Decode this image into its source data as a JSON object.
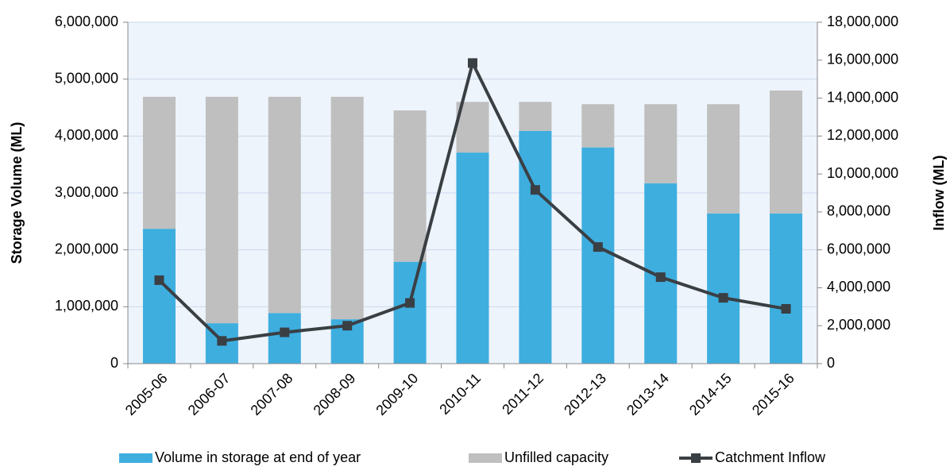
{
  "chart_data": {
    "type": "bar",
    "stacked": true,
    "categories": [
      "2005-06",
      "2006-07",
      "2007-08",
      "2008-09",
      "2009-10",
      "2010-11",
      "2011-12",
      "2012-13",
      "2013-14",
      "2014-15",
      "2015-16"
    ],
    "series": [
      {
        "name": "Volume in storage at end of year",
        "type": "bar",
        "color": "#3eaedf",
        "values": [
          2370000,
          710000,
          890000,
          780000,
          1790000,
          3710000,
          4090000,
          3800000,
          3170000,
          2640000,
          2640000
        ]
      },
      {
        "name": "Unfilled capacity",
        "type": "bar",
        "color": "#bfbfbf",
        "values": [
          2320000,
          3980000,
          3800000,
          3910000,
          2660000,
          890000,
          510000,
          760000,
          1390000,
          1920000,
          2160000
        ]
      },
      {
        "name": "Catchment Inflow",
        "type": "line",
        "axis": "y2",
        "color": "#3a3f44",
        "values": [
          4400000,
          1200000,
          1650000,
          2000000,
          3200000,
          15850000,
          9160000,
          6150000,
          4560000,
          3470000,
          2890000
        ]
      }
    ],
    "ylabel": "Storage Volume (ML)",
    "y2label": "Inflow (ML)",
    "ylim": [
      0,
      6000000
    ],
    "yticks": [
      0,
      {
        "value": 1000000,
        "label": "1,000,000"
      },
      {
        "value": 2000000,
        "label": "2,000,000"
      },
      {
        "value": 3000000,
        "label": "3,000,000"
      },
      {
        "value": 4000000,
        "label": "4,000,000"
      },
      {
        "value": 5000000,
        "label": "5,000,000"
      },
      {
        "value": 6000000,
        "label": "6,000,000"
      }
    ],
    "y2lim": [
      0,
      18000000
    ],
    "y2ticks": [
      0,
      {
        "value": 2000000,
        "label": "2,000,000"
      },
      {
        "value": 4000000,
        "label": "4,000,000"
      },
      {
        "value": 6000000,
        "label": "6,000,000"
      },
      {
        "value": 8000000,
        "label": "8,000,000"
      },
      {
        "value": 10000000,
        "label": "10,000,000"
      },
      {
        "value": 12000000,
        "label": "12,000,000"
      },
      {
        "value": 14000000,
        "label": "14,000,000"
      },
      {
        "value": 16000000,
        "label": "16,000,000"
      },
      {
        "value": 18000000,
        "label": "18,000,000"
      }
    ],
    "grid": true,
    "legend": "bottom"
  }
}
